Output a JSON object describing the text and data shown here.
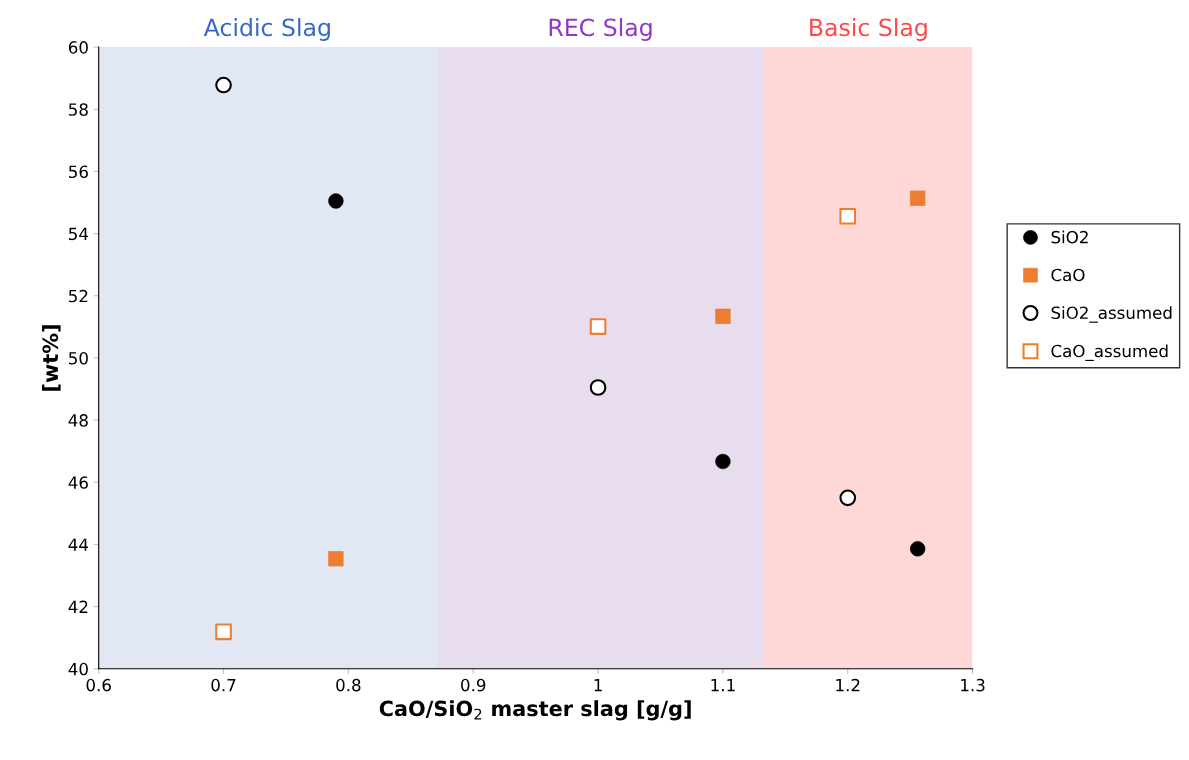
{
  "chart_data": {
    "type": "scatter",
    "xlabel": "CaO/SiO$_{2}$ master slag [g/g]",
    "ylabel": "[wt%]",
    "xlim": [
      0.6,
      1.3
    ],
    "xticks": [
      0.6,
      0.7,
      0.8,
      0.9,
      1,
      1.1,
      1.2,
      1.3
    ],
    "ylim": [
      40,
      60
    ],
    "yticks": [
      40,
      42,
      44,
      46,
      48,
      50,
      52,
      54,
      56,
      58,
      60
    ],
    "grid": false,
    "legend": "right",
    "series": [
      {
        "name": "SiO2",
        "color": "#000000",
        "marker": "circle",
        "x": [
          0.79,
          1.1,
          1.256
        ],
        "values": [
          55.05,
          46.67,
          43.86
        ]
      },
      {
        "name": "CaO",
        "color": "#ed7d31",
        "marker": "square",
        "x": [
          0.79,
          1.1,
          1.256
        ],
        "values": [
          43.54,
          51.34,
          55.14
        ]
      },
      {
        "name": "SiO2_assumed",
        "color": "#000000",
        "marker": "circle",
        "x": [
          0.7,
          1.0,
          1.2
        ],
        "values": [
          58.78,
          49.05,
          45.5
        ]
      },
      {
        "name": "CaO_assumed",
        "color": "#ed7d31",
        "marker": "square",
        "x": [
          0.7,
          1.0,
          1.2
        ],
        "values": [
          41.19,
          51.01,
          54.56
        ]
      }
    ],
    "bands": [
      {
        "axis": "x",
        "from": 0.6,
        "to": 0.871,
        "label": "Acidic Slag",
        "color": "#e1e7f3"
      },
      {
        "axis": "x",
        "from": 0.871,
        "to": 1.133,
        "label": "REC Slag",
        "color": "#e8ddef"
      },
      {
        "axis": "x",
        "from": 1.133,
        "to": 1.3,
        "label": "Basic Slag",
        "color": "#ffd7d7"
      }
    ]
  }
}
